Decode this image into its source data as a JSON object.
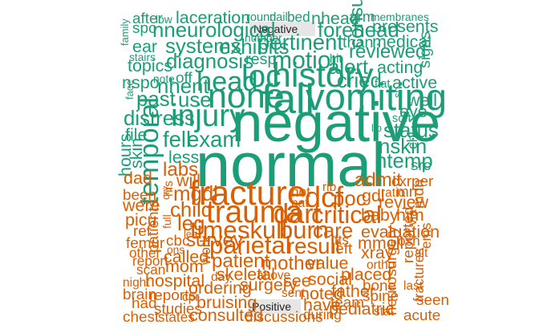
{
  "chart_data": {
    "type": "wordcloud",
    "colors": {
      "negative": "#1b9e77",
      "positive": "#d95f02",
      "label_bg": "#e6e6e6"
    },
    "groups": [
      {
        "name": "Negative",
        "color_key": "negative",
        "words": [
          {
            "text": "normal",
            "size": 9,
            "rot": 0
          },
          {
            "text": "negative",
            "size": 8,
            "rot": 0
          },
          {
            "text": "fall",
            "size": 6,
            "rot": 0
          },
          {
            "text": "vomiting",
            "size": 5.5,
            "rot": 0
          },
          {
            "text": "history",
            "size": 5,
            "rot": 0
          },
          {
            "text": "none",
            "size": 5,
            "rot": 0
          },
          {
            "text": "injury",
            "size": 4.5,
            "rot": 0
          },
          {
            "text": "loc",
            "size": 4.5,
            "rot": 0
          },
          {
            "text": "temporal",
            "size": 4,
            "rot": 90
          },
          {
            "text": "head",
            "size": 4,
            "rot": 0
          },
          {
            "text": "motion",
            "size": 3.5,
            "rot": 0
          },
          {
            "text": "pertinent",
            "size": 3.2,
            "rot": 0
          },
          {
            "text": "exam",
            "size": 3.2,
            "rot": 0
          },
          {
            "text": "fell",
            "size": 3.2,
            "rot": 0
          },
          {
            "text": "cried",
            "size": 3,
            "rot": 0
          },
          {
            "text": "nneurological",
            "size": 3,
            "rot": 0
          },
          {
            "text": "forehead",
            "size": 3,
            "rot": 0
          },
          {
            "text": "nhent",
            "size": 3,
            "rot": 0
          },
          {
            "text": "exhibits",
            "size": 3,
            "rot": 0
          },
          {
            "text": "diagnosis",
            "size": 3,
            "rot": 0
          },
          {
            "text": "systems",
            "size": 3,
            "rot": 0
          },
          {
            "text": "nskin",
            "size": 3,
            "rot": 0
          },
          {
            "text": "ntemp",
            "size": 3,
            "rot": 0
          },
          {
            "text": "status",
            "size": 3,
            "rot": 0
          },
          {
            "text": "alert",
            "size": 3,
            "rot": 0
          },
          {
            "text": "distress",
            "size": 3,
            "rot": 0
          },
          {
            "text": "past",
            "size": 3,
            "rot": 0
          },
          {
            "text": "use",
            "size": 3,
            "rot": 0
          },
          {
            "text": "reviewed",
            "size": 2.8,
            "rot": 0
          },
          {
            "text": "consult",
            "size": 2.8,
            "rot": 90
          },
          {
            "text": "laceration",
            "size": 2.5,
            "rot": 0
          },
          {
            "text": "nhead",
            "size": 2.5,
            "rot": 0
          },
          {
            "text": "medical",
            "size": 2.5,
            "rot": 0
          },
          {
            "text": "presents",
            "size": 2.5,
            "rot": 0
          },
          {
            "text": "acting",
            "size": 2.5,
            "rot": 0
          },
          {
            "text": "active",
            "size": 2.5,
            "rot": 0
          },
          {
            "text": "well",
            "size": 2.5,
            "rot": 0
          },
          {
            "text": "eye",
            "size": 2.5,
            "rot": 0
          },
          {
            "text": "hours",
            "size": 2.5,
            "rot": 90
          },
          {
            "text": "skin",
            "size": 2.5,
            "rot": 90
          },
          {
            "text": "less",
            "size": 2.5,
            "rot": 0
          },
          {
            "text": "file",
            "size": 2.5,
            "rot": 0
          },
          {
            "text": "nspo",
            "size": 2.5,
            "rot": 0
          },
          {
            "text": "topics",
            "size": 2.5,
            "rot": 0
          },
          {
            "text": "ear",
            "size": 2.5,
            "rot": 0
          },
          {
            "text": "resp",
            "size": 2.3,
            "rot": 0
          },
          {
            "text": "than",
            "size": 2.3,
            "rot": 0
          },
          {
            "text": "signs",
            "size": 2.3,
            "rot": 90
          },
          {
            "text": "src",
            "size": 2.2,
            "rot": 0
          },
          {
            "text": "chi",
            "size": 2,
            "rot": 90
          },
          {
            "text": "spo",
            "size": 2.2,
            "rot": 0
          },
          {
            "text": "after",
            "size": 2.2,
            "rot": 0
          },
          {
            "text": "arm",
            "size": 2.2,
            "rot": 0
          },
          {
            "text": "off",
            "size": 2.2,
            "rot": 0
          },
          {
            "text": "bed",
            "size": 2,
            "rot": 0
          },
          {
            "text": "round",
            "size": 1.7,
            "rot": 0
          },
          {
            "text": "nail",
            "size": 1.7,
            "rot": 0
          },
          {
            "text": "low",
            "size": 1.6,
            "rot": 0
          },
          {
            "text": "membranes",
            "size": 1.6,
            "rot": 0
          },
          {
            "text": "family",
            "size": 1.5,
            "rot": 90
          },
          {
            "text": "stairs",
            "size": 1.6,
            "rot": 0
          },
          {
            "text": "number",
            "size": 1.6,
            "rot": 0
          },
          {
            "text": "hit",
            "size": 1.7,
            "rot": 0
          },
          {
            "text": "note",
            "size": 1.6,
            "rot": 0
          },
          {
            "text": "face",
            "size": 1.5,
            "rot": 90
          },
          {
            "text": "flat",
            "size": 1.7,
            "rot": 0
          },
          {
            "text": "soft",
            "size": 1.7,
            "rot": 0
          },
          {
            "text": "lip",
            "size": 1.5,
            "rot": 0
          },
          {
            "text": "sh",
            "size": 1.5,
            "rot": 90
          }
        ]
      },
      {
        "name": "Positive",
        "color_key": "positive",
        "words": [
          {
            "text": "fracture",
            "size": 5,
            "rot": 0
          },
          {
            "text": "trauma",
            "size": 4.5,
            "rot": 0
          },
          {
            "text": "dcf",
            "size": 4.2,
            "rot": 0
          },
          {
            "text": "dart",
            "size": 4,
            "rot": 0
          },
          {
            "text": "critical",
            "size": 3.6,
            "rot": 0
          },
          {
            "text": "time",
            "size": 3.6,
            "rot": 0
          },
          {
            "text": "skull",
            "size": 3.6,
            "rot": 0
          },
          {
            "text": "burn",
            "size": 3.6,
            "rot": 0
          },
          {
            "text": "parietal",
            "size": 3.6,
            "rot": 0
          },
          {
            "text": "result",
            "size": 3.2,
            "rot": 0
          },
          {
            "text": "poc",
            "size": 3,
            "rot": 0
          },
          {
            "text": "care",
            "size": 3,
            "rot": 0
          },
          {
            "text": "mgdl",
            "size": 3,
            "rot": 0
          },
          {
            "text": "child",
            "size": 3,
            "rot": 0
          },
          {
            "text": "leg",
            "size": 3,
            "rot": 0
          },
          {
            "text": "survey",
            "size": 2.8,
            "rot": 0
          },
          {
            "text": "patient",
            "size": 2.8,
            "rot": 0
          },
          {
            "text": "mother",
            "size": 2.8,
            "rot": 0
          },
          {
            "text": "labs",
            "size": 2.8,
            "rot": 0
          },
          {
            "text": "admit",
            "size": 2.8,
            "rot": 0
          },
          {
            "text": "evaluation",
            "size": 2.5,
            "rot": 0
          },
          {
            "text": "mmoll",
            "size": 2.5,
            "rot": 0
          },
          {
            "text": "xray",
            "size": 2.5,
            "rot": 0
          },
          {
            "text": "baby",
            "size": 2.5,
            "rot": 0
          },
          {
            "text": "review",
            "size": 2.5,
            "rot": 0
          },
          {
            "text": "him",
            "size": 2.5,
            "rot": 0
          },
          {
            "text": "will",
            "size": 2.5,
            "rot": 0
          },
          {
            "text": "dad",
            "size": 2.5,
            "rot": 0
          },
          {
            "text": "been",
            "size": 2.2,
            "rot": 0
          },
          {
            "text": "were",
            "size": 2.5,
            "rot": 0
          },
          {
            "text": "picu",
            "size": 2.5,
            "rot": 0
          },
          {
            "text": "ref",
            "size": 2.2,
            "rot": 0
          },
          {
            "text": "femur",
            "size": 2.2,
            "rot": 0
          },
          {
            "text": "other",
            "size": 2,
            "rot": 0
          },
          {
            "text": "report",
            "size": 2,
            "rot": 0
          },
          {
            "text": "scan",
            "size": 2,
            "rot": 0
          },
          {
            "text": "night",
            "size": 1.8,
            "rot": 0
          },
          {
            "text": "brain",
            "size": 2.2,
            "rot": 0
          },
          {
            "text": "had",
            "size": 2.2,
            "rot": 0
          },
          {
            "text": "chest",
            "size": 2.2,
            "rot": 0
          },
          {
            "text": "hospital",
            "size": 2.5,
            "rot": 0
          },
          {
            "text": "reports",
            "size": 2.2,
            "rot": 0
          },
          {
            "text": "studies",
            "size": 2.2,
            "rot": 0
          },
          {
            "text": "states",
            "size": 2,
            "rot": 0
          },
          {
            "text": "called",
            "size": 2.5,
            "rot": 0
          },
          {
            "text": "mom",
            "size": 2.5,
            "rot": 0
          },
          {
            "text": "cbc",
            "size": 2.2,
            "rot": 0
          },
          {
            "text": "patients",
            "size": 2.2,
            "rot": 90
          },
          {
            "text": "ordering",
            "size": 2.5,
            "rot": 0
          },
          {
            "text": "bruising",
            "size": 2.5,
            "rot": 0
          },
          {
            "text": "consulted",
            "size": 2.5,
            "rot": 0
          },
          {
            "text": "discussions",
            "size": 2.2,
            "rot": 0
          },
          {
            "text": "during",
            "size": 2,
            "rot": 0
          },
          {
            "text": "skeletal",
            "size": 2.5,
            "rot": 0
          },
          {
            "text": "surgery",
            "size": 2.5,
            "rot": 0
          },
          {
            "text": "see",
            "size": 2.5,
            "rot": 0
          },
          {
            "text": "social",
            "size": 2.5,
            "rot": 0
          },
          {
            "text": "value",
            "size": 2.5,
            "rot": 0
          },
          {
            "text": "noted",
            "size": 2.5,
            "rot": 0
          },
          {
            "text": "have",
            "size": 2.5,
            "rot": 0
          },
          {
            "text": "father",
            "size": 2.5,
            "rot": 0
          },
          {
            "text": "placed",
            "size": 2.5,
            "rot": 0
          },
          {
            "text": "team",
            "size": 2.2,
            "rot": 0
          },
          {
            "text": "pediatric",
            "size": 2.5,
            "rot": 0
          },
          {
            "text": "bone",
            "size": 2.2,
            "rot": 0
          },
          {
            "text": "spine",
            "size": 2.2,
            "rot": 0
          },
          {
            "text": "neurosurgery",
            "size": 2.2,
            "rot": 90
          },
          {
            "text": "reported",
            "size": 2.2,
            "rot": 90
          },
          {
            "text": "fractures",
            "size": 2,
            "rot": 90
          },
          {
            "text": "last",
            "size": 1.8,
            "rot": 0
          },
          {
            "text": "seen",
            "size": 2.2,
            "rot": 0
          },
          {
            "text": "acute",
            "size": 2.2,
            "rot": 0
          },
          {
            "text": "left",
            "size": 2.2,
            "rot": 0
          },
          {
            "text": "lfts",
            "size": 2,
            "rot": 0
          },
          {
            "text": "gdl",
            "size": 2.5,
            "rot": 0
          },
          {
            "text": "mri",
            "size": 2.2,
            "rot": 0
          },
          {
            "text": "ratio",
            "size": 1.8,
            "rot": 0
          },
          {
            "text": "cxr",
            "size": 2.2,
            "rot": 0
          },
          {
            "text": "per",
            "size": 2.2,
            "rot": 0
          },
          {
            "text": "mdn",
            "size": 2.2,
            "rot": 90
          },
          {
            "text": "via",
            "size": 1.8,
            "rot": 90
          },
          {
            "text": "ems",
            "size": 2,
            "rot": 90
          },
          {
            "text": "osh",
            "size": 2,
            "rot": 0
          },
          {
            "text": "alt",
            "size": 1.8,
            "rot": 0
          },
          {
            "text": "ortho",
            "size": 1.8,
            "rot": 0
          },
          {
            "text": "hot",
            "size": 2,
            "rot": 0
          },
          {
            "text": "nat",
            "size": 1.8,
            "rot": 0
          },
          {
            "text": "rib",
            "size": 1.8,
            "rot": 0
          },
          {
            "text": "cpr",
            "size": 1.8,
            "rot": 0
          },
          {
            "text": "his",
            "size": 1.8,
            "rot": 90
          },
          {
            "text": "day",
            "size": 1.8,
            "rot": 0
          },
          {
            "text": "above",
            "size": 1.8,
            "rot": 0
          },
          {
            "text": "sent",
            "size": 1.8,
            "rot": 0
          },
          {
            "text": "stat",
            "size": 1.8,
            "rot": 0
          },
          {
            "text": "ons",
            "size": 1.6,
            "rot": 0
          },
          {
            "text": "work",
            "size": 2,
            "rot": 90
          },
          {
            "text": "full",
            "size": 1.6,
            "rot": 90
          },
          {
            "text": "cry",
            "size": 1.5,
            "rot": 90
          },
          {
            "text": "lea",
            "size": 1.5,
            "rot": 0
          }
        ]
      }
    ]
  }
}
